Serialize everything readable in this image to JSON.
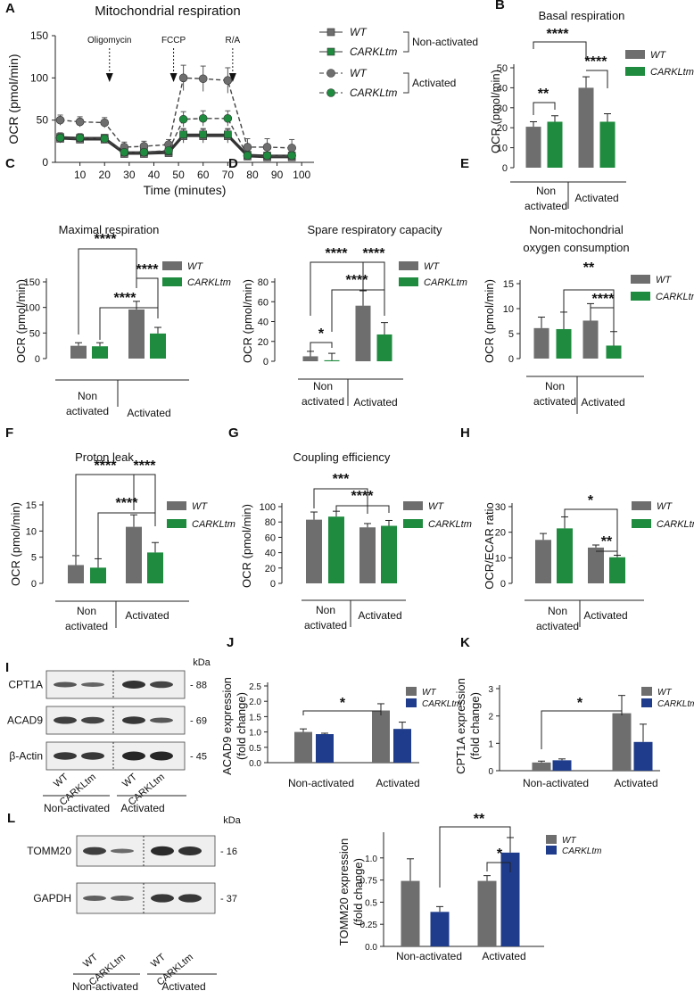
{
  "colors": {
    "wt_gray": "#6e6e6e",
    "carkl_green": "#1e8b3e",
    "carkl_blue": "#1f3c8c",
    "axis": "#222222"
  },
  "chart_data": [
    {
      "panel": "A",
      "type": "line",
      "title": "Mitochondrial respiration",
      "xlabel": "Time (minutes)",
      "ylabel": "OCR (pmol/min)",
      "xlim": [
        0,
        105
      ],
      "ylim": [
        0,
        150
      ],
      "xticks": [
        10,
        20,
        30,
        40,
        50,
        60,
        70,
        80,
        90,
        100
      ],
      "yticks": [
        0,
        50,
        100,
        150
      ],
      "x": [
        2,
        10,
        20,
        28,
        36,
        46,
        52,
        60,
        70,
        78,
        86,
        96
      ],
      "injections": [
        {
          "label": "Oligomycin",
          "x": 22
        },
        {
          "label": "FCCP",
          "x": 48
        },
        {
          "label": "R/A",
          "x": 72
        }
      ],
      "series": [
        {
          "name": "WT",
          "group": "Non-activated",
          "values": [
            28,
            27,
            27,
            10,
            10,
            11,
            31,
            31,
            31,
            7,
            6,
            6
          ],
          "err": [
            5,
            4,
            4,
            3,
            3,
            3,
            8,
            8,
            8,
            3,
            3,
            3
          ]
        },
        {
          "name": "CARKLtm",
          "group": "Non-activated",
          "values": [
            30,
            29,
            29,
            12,
            12,
            13,
            33,
            33,
            33,
            9,
            8,
            8
          ],
          "err": [
            5,
            4,
            4,
            3,
            3,
            3,
            7,
            7,
            7,
            3,
            3,
            3
          ]
        },
        {
          "name": "WT",
          "group": "Activated",
          "values": [
            50,
            48,
            47,
            18,
            19,
            21,
            100,
            99,
            97,
            18,
            18,
            17
          ],
          "err": [
            6,
            6,
            6,
            6,
            6,
            6,
            15,
            15,
            15,
            10,
            10,
            10
          ]
        },
        {
          "name": "CARKLtm",
          "group": "Activated",
          "values": [
            29,
            29,
            28,
            12,
            12,
            14,
            51,
            52,
            52,
            8,
            8,
            8
          ],
          "err": [
            5,
            5,
            5,
            3,
            3,
            3,
            9,
            9,
            9,
            4,
            4,
            4
          ]
        }
      ],
      "legend": {
        "wt": "WT",
        "carkl": "CARKLtm",
        "non_activated": "Non-activated",
        "activated": "Activated"
      }
    },
    {
      "panel": "B",
      "type": "bar",
      "title": "Basal respiration",
      "ylabel": "OCR (pmol/min)",
      "ylim": [
        0,
        50
      ],
      "yticks": [
        0,
        10,
        20,
        30,
        40,
        50
      ],
      "groups": [
        "Non activated",
        "Activated"
      ],
      "series": [
        {
          "name": "WT",
          "values": [
            20.5,
            40
          ],
          "err": [
            2.5,
            5.5
          ]
        },
        {
          "name": "CARKLtm",
          "values": [
            23,
            23
          ],
          "err": [
            3,
            4
          ]
        }
      ],
      "significance": [
        "**",
        "****",
        "****"
      ]
    },
    {
      "panel": "C",
      "type": "bar",
      "title": "Maximal respiration",
      "ylabel": "OCR (pmol/min)",
      "ylim": [
        0,
        150
      ],
      "yticks": [
        0,
        50,
        100,
        150
      ],
      "groups": [
        "Non activated",
        "Activated"
      ],
      "series": [
        {
          "name": "WT",
          "values": [
            25,
            96
          ],
          "err": [
            6,
            16
          ]
        },
        {
          "name": "CARKLtm",
          "values": [
            24,
            49
          ],
          "err": [
            7,
            12
          ]
        }
      ],
      "significance": [
        "****",
        "****",
        "****"
      ]
    },
    {
      "panel": "D",
      "type": "bar",
      "title": "Spare respiratory capacity",
      "ylabel": "OCR (pmol/min)",
      "ylim": [
        0,
        80
      ],
      "yticks": [
        0,
        20,
        40,
        60,
        80
      ],
      "groups": [
        "Non activated",
        "Activated"
      ],
      "series": [
        {
          "name": "WT",
          "values": [
            5,
            56
          ],
          "err": [
            5,
            15
          ]
        },
        {
          "name": "CARKLtm",
          "values": [
            1,
            27
          ],
          "err": [
            7,
            12
          ]
        }
      ],
      "significance": [
        "*",
        "****",
        "****",
        "****"
      ]
    },
    {
      "panel": "E",
      "type": "bar",
      "title": "Non-mitochondrial",
      "subtitle": "oxygen consumption",
      "ylabel": "OCR (pmol/min)",
      "ylim": [
        0,
        15
      ],
      "yticks": [
        0,
        5,
        10,
        15
      ],
      "groups": [
        "Non activated",
        "Activated"
      ],
      "series": [
        {
          "name": "WT",
          "values": [
            6.1,
            7.6
          ],
          "err": [
            2.2,
            3.4
          ]
        },
        {
          "name": "CARKLtm",
          "values": [
            5.9,
            2.6
          ],
          "err": [
            3.4,
            2.8
          ]
        }
      ],
      "significance": [
        "**",
        "****"
      ]
    },
    {
      "panel": "F",
      "type": "bar",
      "title": "Proton leak",
      "ylabel": "OCR (pmol/min)",
      "ylim": [
        0,
        15
      ],
      "yticks": [
        0,
        5,
        10,
        15
      ],
      "groups": [
        "Non activated",
        "Activated"
      ],
      "series": [
        {
          "name": "WT",
          "values": [
            3.5,
            10.8
          ],
          "err": [
            1.8,
            2.3
          ]
        },
        {
          "name": "CARKLtm",
          "values": [
            3,
            5.9
          ],
          "err": [
            1.7,
            1.9
          ]
        }
      ],
      "significance": [
        "****",
        "****",
        "****"
      ]
    },
    {
      "panel": "G",
      "type": "bar",
      "title": "Coupling efficiency",
      "ylabel": "OCR (pmol/min)",
      "ylim": [
        0,
        100
      ],
      "yticks": [
        0,
        20,
        40,
        60,
        80,
        100
      ],
      "groups": [
        "Non activated",
        "Activated"
      ],
      "series": [
        {
          "name": "WT",
          "values": [
            83,
            73
          ],
          "err": [
            10,
            5
          ]
        },
        {
          "name": "CARKLtm",
          "values": [
            87,
            75
          ],
          "err": [
            7,
            7
          ]
        }
      ],
      "significance": [
        "***",
        "****"
      ]
    },
    {
      "panel": "H",
      "type": "bar",
      "title": "",
      "ylabel": "OCR/ECAR ratio",
      "ylim": [
        0,
        30
      ],
      "yticks": [
        0,
        10,
        20,
        30
      ],
      "groups": [
        "Non activated",
        "Activated"
      ],
      "series": [
        {
          "name": "WT",
          "values": [
            17,
            14
          ],
          "err": [
            2.5,
            1
          ]
        },
        {
          "name": "CARKLtm",
          "values": [
            21.5,
            10.2
          ],
          "err": [
            4.5,
            0.8
          ]
        }
      ],
      "significance": [
        "*",
        "**"
      ]
    },
    {
      "panel": "J",
      "type": "bar",
      "title": "",
      "ylabel": "ACAD9 expression",
      "ylabel2": "(fold change)",
      "ylim": [
        0,
        2.5
      ],
      "yticks": [
        0.0,
        0.5,
        1.0,
        1.5,
        2.0,
        2.5
      ],
      "groups": [
        "Non-activated",
        "Activated"
      ],
      "series": [
        {
          "name": "WT",
          "values": [
            1.0,
            1.7
          ],
          "err": [
            0.1,
            0.22
          ]
        },
        {
          "name": "CARKLtm",
          "values": [
            0.93,
            1.1
          ],
          "err": [
            0.03,
            0.22
          ]
        }
      ],
      "significance": [
        "*"
      ]
    },
    {
      "panel": "K",
      "type": "bar",
      "title": "",
      "ylabel": "CPT1A expression",
      "ylabel2": "(fold change)",
      "ylim": [
        0,
        3
      ],
      "yticks": [
        0,
        1,
        2,
        3
      ],
      "groups": [
        "Non-activated",
        "Activated"
      ],
      "series": [
        {
          "name": "WT",
          "values": [
            0.3,
            2.1
          ],
          "err": [
            0.05,
            0.65
          ]
        },
        {
          "name": "CARKLtm",
          "values": [
            0.38,
            1.05
          ],
          "err": [
            0.05,
            0.65
          ]
        }
      ],
      "significance": [
        "*"
      ]
    },
    {
      "panel": "L",
      "type": "bar",
      "title": "",
      "ylabel": "TOMM20 expression",
      "ylabel2": "(fold change)",
      "ylim": [
        0,
        1.25
      ],
      "yticks": [
        0.0,
        0.25,
        0.5,
        0.75,
        1.0
      ],
      "groups": [
        "Non-activated",
        "Activated"
      ],
      "series": [
        {
          "name": "WT",
          "values": [
            0.74,
            0.74
          ],
          "err": [
            0.25,
            0.06
          ]
        },
        {
          "name": "CARKLtm",
          "values": [
            0.39,
            1.06
          ],
          "err": [
            0.06,
            0.17
          ]
        }
      ],
      "significance": [
        "**",
        "*"
      ]
    }
  ],
  "blots": {
    "I": {
      "panel": "I",
      "kda_label": "kDa",
      "rows": [
        {
          "label": "CPT1A",
          "kda": "- 88"
        },
        {
          "label": "ACAD9",
          "kda": "- 69"
        },
        {
          "label": "β-Actin",
          "kda": "- 45"
        }
      ],
      "lane_labels": [
        "WT",
        "CARKLtm",
        "WT",
        "CARKLtm"
      ],
      "groups": [
        "Non-activated",
        "Activated"
      ]
    },
    "L": {
      "panel": "L",
      "kda_label": "kDa",
      "rows": [
        {
          "label": "TOMM20",
          "kda": "- 16"
        },
        {
          "label": "GAPDH",
          "kda": "- 37"
        }
      ],
      "lane_labels": [
        "WT",
        "CARKLtm",
        "WT",
        "CARKLtm"
      ],
      "groups": [
        "Non-activated",
        "Activated"
      ]
    }
  }
}
